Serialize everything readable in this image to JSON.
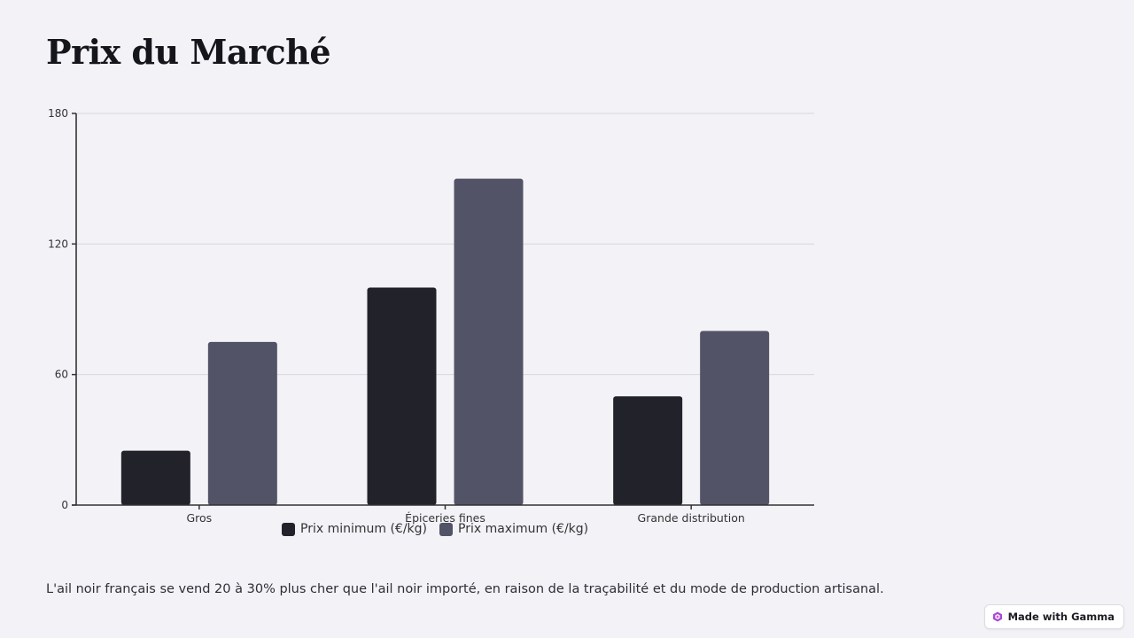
{
  "page": {
    "title": "Prix du Marché",
    "caption": "L'ail noir français se vend 20 à 30% plus cher que l'ail noir importé, en raison de la traçabilité et du mode de production artisanal."
  },
  "badge": {
    "label": "Made with Gamma",
    "icon": "gamma-logo-icon"
  },
  "colors": {
    "background": "#f3f2f7",
    "series_min": "#22222a",
    "series_max": "#525366",
    "grid": "#d6d6de",
    "axis": "#333333"
  },
  "chart_data": {
    "type": "bar",
    "categories": [
      "Gros",
      "Épiceries fines",
      "Grande distribution"
    ],
    "series": [
      {
        "name": "Prix minimum (€/kg)",
        "values": [
          25,
          100,
          50
        ]
      },
      {
        "name": "Prix maximum (€/kg)",
        "values": [
          75,
          150,
          80
        ]
      }
    ],
    "y_ticks": [
      0,
      60,
      120,
      180
    ],
    "ylim": [
      0,
      180
    ],
    "grid": true,
    "legend_position": "bottom"
  }
}
